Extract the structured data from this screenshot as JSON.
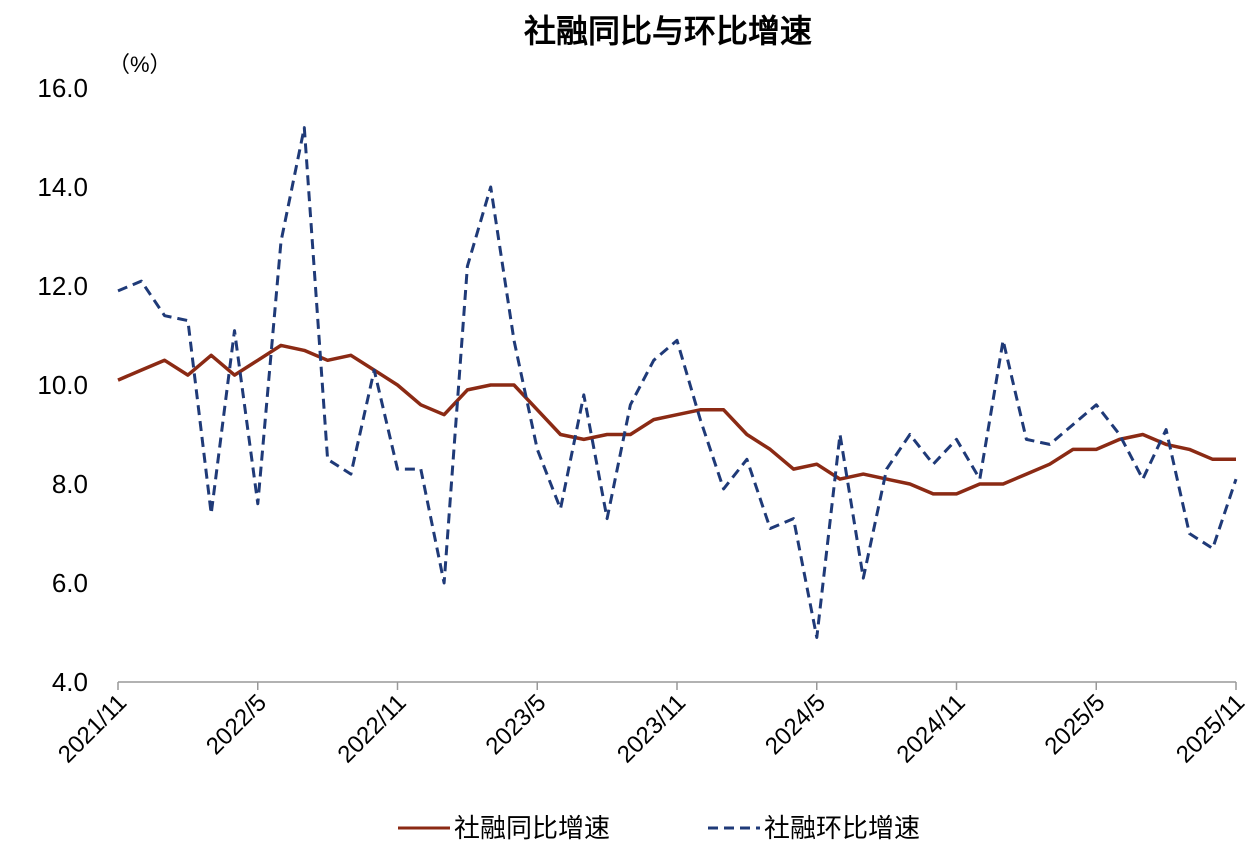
{
  "chart_data": {
    "type": "line",
    "title": "社融同比与环比增速",
    "y_label": "（%）",
    "categories": [
      "2021/11",
      null,
      null,
      null,
      null,
      null,
      "2022/5",
      null,
      null,
      null,
      null,
      null,
      "2022/11",
      null,
      null,
      null,
      null,
      null,
      "2023/5",
      null,
      null,
      null,
      null,
      null,
      "2023/11",
      null,
      null,
      null,
      null,
      null,
      "2024/5",
      null,
      null,
      null,
      null,
      null,
      "2024/11",
      null,
      null,
      null,
      null,
      null,
      "2025/5",
      null,
      null,
      null,
      null,
      null,
      "2025/11"
    ],
    "series": [
      {
        "name": "社融同比增速",
        "color": "#8b2a14",
        "dash": false,
        "values": [
          10.1,
          10.3,
          10.5,
          10.2,
          10.6,
          10.2,
          10.5,
          10.8,
          10.7,
          10.5,
          10.6,
          10.3,
          10.0,
          9.6,
          9.4,
          9.9,
          10.0,
          10.0,
          9.5,
          9.0,
          8.9,
          9.0,
          9.0,
          9.3,
          9.4,
          9.5,
          9.5,
          9.0,
          8.7,
          8.3,
          8.4,
          8.1,
          8.2,
          8.1,
          8.0,
          7.8,
          7.8,
          8.0,
          8.0,
          8.2,
          8.4,
          8.7,
          8.7,
          8.9,
          9.0,
          8.8,
          8.7,
          8.5,
          8.5
        ]
      },
      {
        "name": "社融环比增速",
        "color": "#1f3a78",
        "dash": true,
        "values": [
          11.9,
          12.1,
          11.4,
          11.3,
          7.4,
          11.1,
          7.6,
          12.9,
          15.2,
          8.5,
          8.2,
          10.3,
          8.3,
          8.3,
          6.0,
          12.4,
          14.0,
          10.9,
          8.7,
          7.5,
          9.8,
          7.3,
          9.6,
          10.5,
          10.9,
          9.3,
          7.9,
          8.5,
          7.1,
          7.3,
          4.9,
          9.0,
          6.1,
          8.3,
          9.0,
          8.4,
          8.9,
          8.1,
          10.9,
          8.9,
          8.8,
          9.2,
          9.6,
          9.0,
          8.1,
          9.1,
          7.0,
          6.7,
          8.1
        ]
      }
    ],
    "ylim": [
      4,
      16
    ],
    "yticks": [
      {
        "value": 4,
        "label": "4.0"
      },
      {
        "value": 6,
        "label": "6.0"
      },
      {
        "value": 8,
        "label": "8.0"
      },
      {
        "value": 10,
        "label": "10.0"
      },
      {
        "value": 12,
        "label": "12.0"
      },
      {
        "value": 14,
        "label": "14.0"
      },
      {
        "value": 16,
        "label": "16.0"
      }
    ],
    "grid": false,
    "legend": "bottom"
  }
}
